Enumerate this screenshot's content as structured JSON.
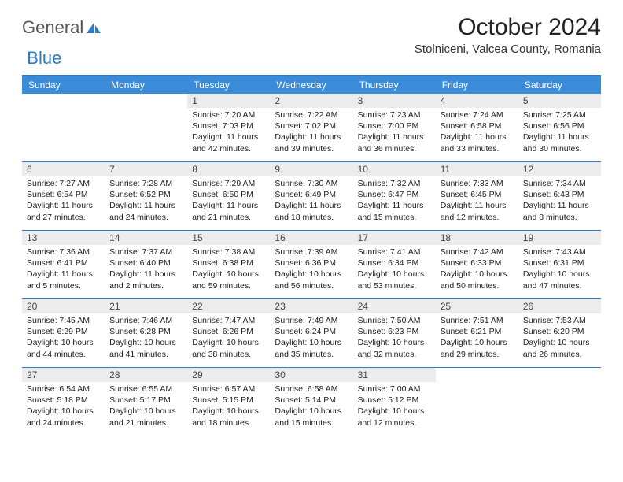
{
  "logo": {
    "part1": "General",
    "part2": "Blue"
  },
  "title": "October 2024",
  "location": "Stolniceni, Valcea County, Romania",
  "colors": {
    "header_bg": "#3a8bd8",
    "border": "#2b7cc4",
    "daynum_bg": "#ececec",
    "text": "#222222",
    "header_text": "#ffffff"
  },
  "day_labels": [
    "Sunday",
    "Monday",
    "Tuesday",
    "Wednesday",
    "Thursday",
    "Friday",
    "Saturday"
  ],
  "weeks": [
    [
      null,
      null,
      {
        "n": "1",
        "sr": "7:20 AM",
        "ss": "7:03 PM",
        "dl": "11 hours and 42 minutes."
      },
      {
        "n": "2",
        "sr": "7:22 AM",
        "ss": "7:02 PM",
        "dl": "11 hours and 39 minutes."
      },
      {
        "n": "3",
        "sr": "7:23 AM",
        "ss": "7:00 PM",
        "dl": "11 hours and 36 minutes."
      },
      {
        "n": "4",
        "sr": "7:24 AM",
        "ss": "6:58 PM",
        "dl": "11 hours and 33 minutes."
      },
      {
        "n": "5",
        "sr": "7:25 AM",
        "ss": "6:56 PM",
        "dl": "11 hours and 30 minutes."
      }
    ],
    [
      {
        "n": "6",
        "sr": "7:27 AM",
        "ss": "6:54 PM",
        "dl": "11 hours and 27 minutes."
      },
      {
        "n": "7",
        "sr": "7:28 AM",
        "ss": "6:52 PM",
        "dl": "11 hours and 24 minutes."
      },
      {
        "n": "8",
        "sr": "7:29 AM",
        "ss": "6:50 PM",
        "dl": "11 hours and 21 minutes."
      },
      {
        "n": "9",
        "sr": "7:30 AM",
        "ss": "6:49 PM",
        "dl": "11 hours and 18 minutes."
      },
      {
        "n": "10",
        "sr": "7:32 AM",
        "ss": "6:47 PM",
        "dl": "11 hours and 15 minutes."
      },
      {
        "n": "11",
        "sr": "7:33 AM",
        "ss": "6:45 PM",
        "dl": "11 hours and 12 minutes."
      },
      {
        "n": "12",
        "sr": "7:34 AM",
        "ss": "6:43 PM",
        "dl": "11 hours and 8 minutes."
      }
    ],
    [
      {
        "n": "13",
        "sr": "7:36 AM",
        "ss": "6:41 PM",
        "dl": "11 hours and 5 minutes."
      },
      {
        "n": "14",
        "sr": "7:37 AM",
        "ss": "6:40 PM",
        "dl": "11 hours and 2 minutes."
      },
      {
        "n": "15",
        "sr": "7:38 AM",
        "ss": "6:38 PM",
        "dl": "10 hours and 59 minutes."
      },
      {
        "n": "16",
        "sr": "7:39 AM",
        "ss": "6:36 PM",
        "dl": "10 hours and 56 minutes."
      },
      {
        "n": "17",
        "sr": "7:41 AM",
        "ss": "6:34 PM",
        "dl": "10 hours and 53 minutes."
      },
      {
        "n": "18",
        "sr": "7:42 AM",
        "ss": "6:33 PM",
        "dl": "10 hours and 50 minutes."
      },
      {
        "n": "19",
        "sr": "7:43 AM",
        "ss": "6:31 PM",
        "dl": "10 hours and 47 minutes."
      }
    ],
    [
      {
        "n": "20",
        "sr": "7:45 AM",
        "ss": "6:29 PM",
        "dl": "10 hours and 44 minutes."
      },
      {
        "n": "21",
        "sr": "7:46 AM",
        "ss": "6:28 PM",
        "dl": "10 hours and 41 minutes."
      },
      {
        "n": "22",
        "sr": "7:47 AM",
        "ss": "6:26 PM",
        "dl": "10 hours and 38 minutes."
      },
      {
        "n": "23",
        "sr": "7:49 AM",
        "ss": "6:24 PM",
        "dl": "10 hours and 35 minutes."
      },
      {
        "n": "24",
        "sr": "7:50 AM",
        "ss": "6:23 PM",
        "dl": "10 hours and 32 minutes."
      },
      {
        "n": "25",
        "sr": "7:51 AM",
        "ss": "6:21 PM",
        "dl": "10 hours and 29 minutes."
      },
      {
        "n": "26",
        "sr": "7:53 AM",
        "ss": "6:20 PM",
        "dl": "10 hours and 26 minutes."
      }
    ],
    [
      {
        "n": "27",
        "sr": "6:54 AM",
        "ss": "5:18 PM",
        "dl": "10 hours and 24 minutes."
      },
      {
        "n": "28",
        "sr": "6:55 AM",
        "ss": "5:17 PM",
        "dl": "10 hours and 21 minutes."
      },
      {
        "n": "29",
        "sr": "6:57 AM",
        "ss": "5:15 PM",
        "dl": "10 hours and 18 minutes."
      },
      {
        "n": "30",
        "sr": "6:58 AM",
        "ss": "5:14 PM",
        "dl": "10 hours and 15 minutes."
      },
      {
        "n": "31",
        "sr": "7:00 AM",
        "ss": "5:12 PM",
        "dl": "10 hours and 12 minutes."
      },
      null,
      null
    ]
  ],
  "labels": {
    "sunrise": "Sunrise: ",
    "sunset": "Sunset: ",
    "daylight": "Daylight: "
  }
}
